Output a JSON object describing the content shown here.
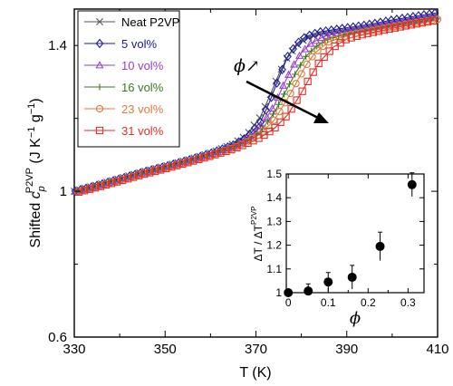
{
  "chart_data": [
    {
      "type": "line",
      "xlabel": "T (K)",
      "ylabel_parts": {
        "prefix": "Shifted ",
        "sym": "c",
        "sub": "p",
        "sup": "P2VP",
        "units": " (J K",
        "units_exp1": "−1",
        "units_mid": " g",
        "units_exp2": "−1",
        "units_end": ")"
      },
      "xlim": [
        330,
        410
      ],
      "ylim": [
        0.6,
        1.5
      ],
      "xticks": [
        330,
        350,
        370,
        390,
        410
      ],
      "yticks": [
        0.6,
        1,
        1.4
      ],
      "ytick_labels": [
        "0.6",
        "1",
        "1.4"
      ],
      "annotation": "ϕ↗",
      "series": [
        {
          "name": "Neat P2VP",
          "color": "#555555",
          "marker": "x",
          "tg": 374,
          "x": [
            330,
            335,
            340,
            345,
            350,
            355,
            360,
            365,
            368,
            371,
            373,
            375,
            377,
            379,
            381,
            384,
            388,
            392,
            396,
            400,
            405,
            410
          ],
          "y": [
            1.0,
            1.017,
            1.035,
            1.053,
            1.069,
            1.086,
            1.105,
            1.13,
            1.155,
            1.205,
            1.26,
            1.32,
            1.37,
            1.4,
            1.42,
            1.432,
            1.44,
            1.447,
            1.455,
            1.465,
            1.475,
            1.485
          ]
        },
        {
          "name": "5 vol%",
          "color": "#1a1aa8",
          "marker": "diamond",
          "tg": 375,
          "x": [
            330,
            335,
            340,
            345,
            350,
            355,
            360,
            365,
            368,
            371,
            373,
            375,
            377,
            379,
            381,
            384,
            388,
            392,
            396,
            400,
            405,
            410
          ],
          "y": [
            1.0,
            1.016,
            1.034,
            1.052,
            1.068,
            1.085,
            1.104,
            1.127,
            1.148,
            1.19,
            1.245,
            1.31,
            1.37,
            1.405,
            1.425,
            1.437,
            1.445,
            1.452,
            1.46,
            1.47,
            1.48,
            1.49
          ]
        },
        {
          "name": "10 vol%",
          "color": "#9a3fc7",
          "marker": "triangle",
          "tg": 376,
          "x": [
            330,
            335,
            340,
            345,
            350,
            355,
            360,
            365,
            368,
            371,
            374,
            376,
            378,
            380,
            382,
            385,
            389,
            393,
            397,
            401,
            405,
            410
          ],
          "y": [
            0.998,
            1.014,
            1.032,
            1.05,
            1.066,
            1.083,
            1.101,
            1.123,
            1.142,
            1.175,
            1.235,
            1.29,
            1.34,
            1.38,
            1.405,
            1.425,
            1.437,
            1.445,
            1.453,
            1.462,
            1.47,
            1.48
          ]
        },
        {
          "name": "16 vol%",
          "color": "#3a7a1e",
          "marker": "plus",
          "tg": 377,
          "x": [
            330,
            335,
            340,
            345,
            350,
            355,
            360,
            365,
            368,
            371,
            374,
            377,
            379,
            381,
            383,
            386,
            390,
            394,
            398,
            402,
            406,
            410
          ],
          "y": [
            0.997,
            1.013,
            1.031,
            1.049,
            1.065,
            1.082,
            1.1,
            1.121,
            1.139,
            1.165,
            1.215,
            1.285,
            1.33,
            1.37,
            1.395,
            1.418,
            1.432,
            1.441,
            1.45,
            1.458,
            1.466,
            1.475
          ]
        },
        {
          "name": "23 vol%",
          "color": "#e07a3a",
          "marker": "circle",
          "tg": 378,
          "x": [
            330,
            335,
            340,
            345,
            350,
            355,
            360,
            365,
            368,
            371,
            374,
            377,
            379,
            381,
            383,
            386,
            390,
            394,
            398,
            402,
            406,
            410
          ],
          "y": [
            0.996,
            1.012,
            1.03,
            1.048,
            1.064,
            1.081,
            1.099,
            1.119,
            1.136,
            1.158,
            1.195,
            1.255,
            1.3,
            1.345,
            1.38,
            1.41,
            1.428,
            1.438,
            1.447,
            1.456,
            1.464,
            1.472
          ]
        },
        {
          "name": "31 vol%",
          "color": "#e0302a",
          "marker": "square",
          "tg": 381,
          "x": [
            330,
            335,
            340,
            345,
            350,
            355,
            360,
            365,
            368,
            371,
            374,
            377,
            380,
            382,
            384,
            387,
            390,
            394,
            398,
            402,
            406,
            410
          ],
          "y": [
            0.995,
            1.011,
            1.028,
            1.046,
            1.062,
            1.079,
            1.097,
            1.116,
            1.131,
            1.148,
            1.172,
            1.21,
            1.27,
            1.315,
            1.355,
            1.395,
            1.418,
            1.432,
            1.442,
            1.452,
            1.461,
            1.47
          ]
        }
      ]
    },
    {
      "type": "scatter",
      "xlabel": "ϕ",
      "ylabel": "ΔT / ΔT",
      "ylabel_sup": "P2VP",
      "xlim": [
        -0.005,
        0.34
      ],
      "ylim": [
        1.0,
        1.5
      ],
      "xticks": [
        0,
        0.1,
        0.2,
        0.3
      ],
      "xtick_labels": [
        "0",
        "0.1",
        "0.2",
        "0.3"
      ],
      "yticks": [
        1,
        1.1,
        1.2,
        1.3,
        1.4,
        1.5
      ],
      "ytick_labels": [
        "1",
        "1.1",
        "1.2",
        "1.3",
        "1.4",
        "1.5"
      ],
      "points": [
        {
          "x": 0.0,
          "y": 1.0,
          "err": 0.0
        },
        {
          "x": 0.05,
          "y": 1.007,
          "err": 0.03
        },
        {
          "x": 0.1,
          "y": 1.045,
          "err": 0.04
        },
        {
          "x": 0.16,
          "y": 1.065,
          "err": 0.05
        },
        {
          "x": 0.23,
          "y": 1.195,
          "err": 0.06
        },
        {
          "x": 0.31,
          "y": 1.455,
          "err": 0.05
        }
      ]
    }
  ]
}
